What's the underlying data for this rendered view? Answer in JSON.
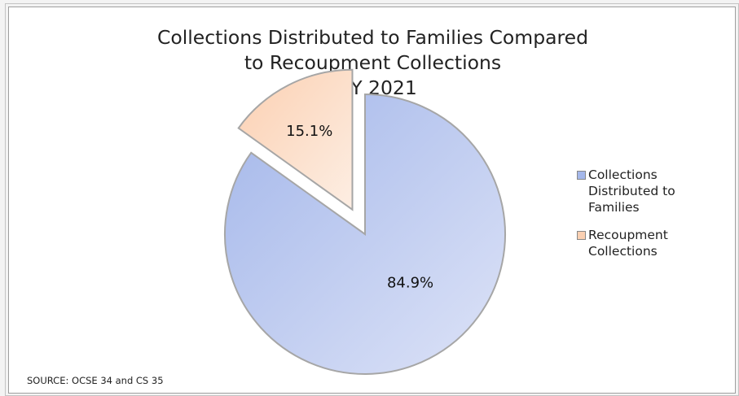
{
  "chart_data": {
    "type": "pie",
    "title_lines": [
      "Collections Distributed to Families Compared",
      "to Recoupment Collections",
      "FFY 2021"
    ],
    "slices": [
      {
        "name": "Collections Distributed to Families",
        "legend_lines": "Collections\nDistributed to\nFamilies",
        "value": 84.9,
        "label": "84.9%",
        "color_start": "#a4b7ea",
        "color_end": "#dde3f7",
        "exploded": false
      },
      {
        "name": "Recoupment Collections",
        "legend_lines": "Recoupment\nCollections",
        "value": 15.1,
        "label": "15.1%",
        "color_start": "#fbd0b2",
        "color_end": "#fdeee3",
        "exploded": true
      }
    ],
    "legend_position": "right",
    "source": "SOURCE: OCSE 34 and CS 35"
  }
}
